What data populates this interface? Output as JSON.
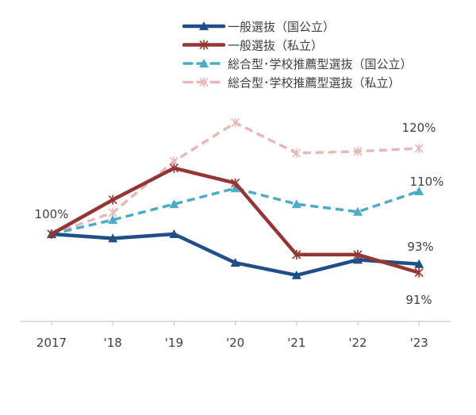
{
  "chart_data": {
    "type": "line",
    "title": "",
    "xlabel": "",
    "ylabel": "",
    "categories": [
      "2017",
      "'18",
      "'19",
      "'20",
      "'21",
      "'22",
      "'23"
    ],
    "y_unit": "%",
    "ylim": [
      80,
      130
    ],
    "grid": false,
    "legend_placement": "top-right",
    "series": [
      {
        "name": "一般選抜（国公立）",
        "color": "#1f4e89",
        "dash": false,
        "marker": "triangle",
        "values": [
          100,
          99,
          100,
          93.3,
          90.4,
          94,
          93
        ]
      },
      {
        "name": "一般選抜（私立）",
        "color": "#943634",
        "dash": false,
        "marker": "asterisk",
        "values": [
          100,
          108,
          115.4,
          111.9,
          95.2,
          95.2,
          91
        ]
      },
      {
        "name": "総合型･学校推薦型選抜（国公立）",
        "color": "#4bacc6",
        "dash": true,
        "marker": "triangle",
        "values": [
          100,
          103.3,
          107,
          110.7,
          107,
          105.2,
          110
        ]
      },
      {
        "name": "総合型･学校推薦型選抜（私立）",
        "color": "#e6b9b8",
        "dash": true,
        "marker": "asterisk",
        "values": [
          100,
          105,
          117,
          126,
          118.9,
          119.3,
          120
        ]
      }
    ],
    "annotations": [
      {
        "text": "100%",
        "category": "2017",
        "value": 100
      },
      {
        "text": "120%",
        "category": "'23",
        "value": 120,
        "series": 3
      },
      {
        "text": "110%",
        "category": "'23",
        "value": 110,
        "series": 2
      },
      {
        "text": "93%",
        "category": "'23",
        "value": 93,
        "series": 0
      },
      {
        "text": "91%",
        "category": "'23",
        "value": 91,
        "series": 1
      }
    ]
  }
}
